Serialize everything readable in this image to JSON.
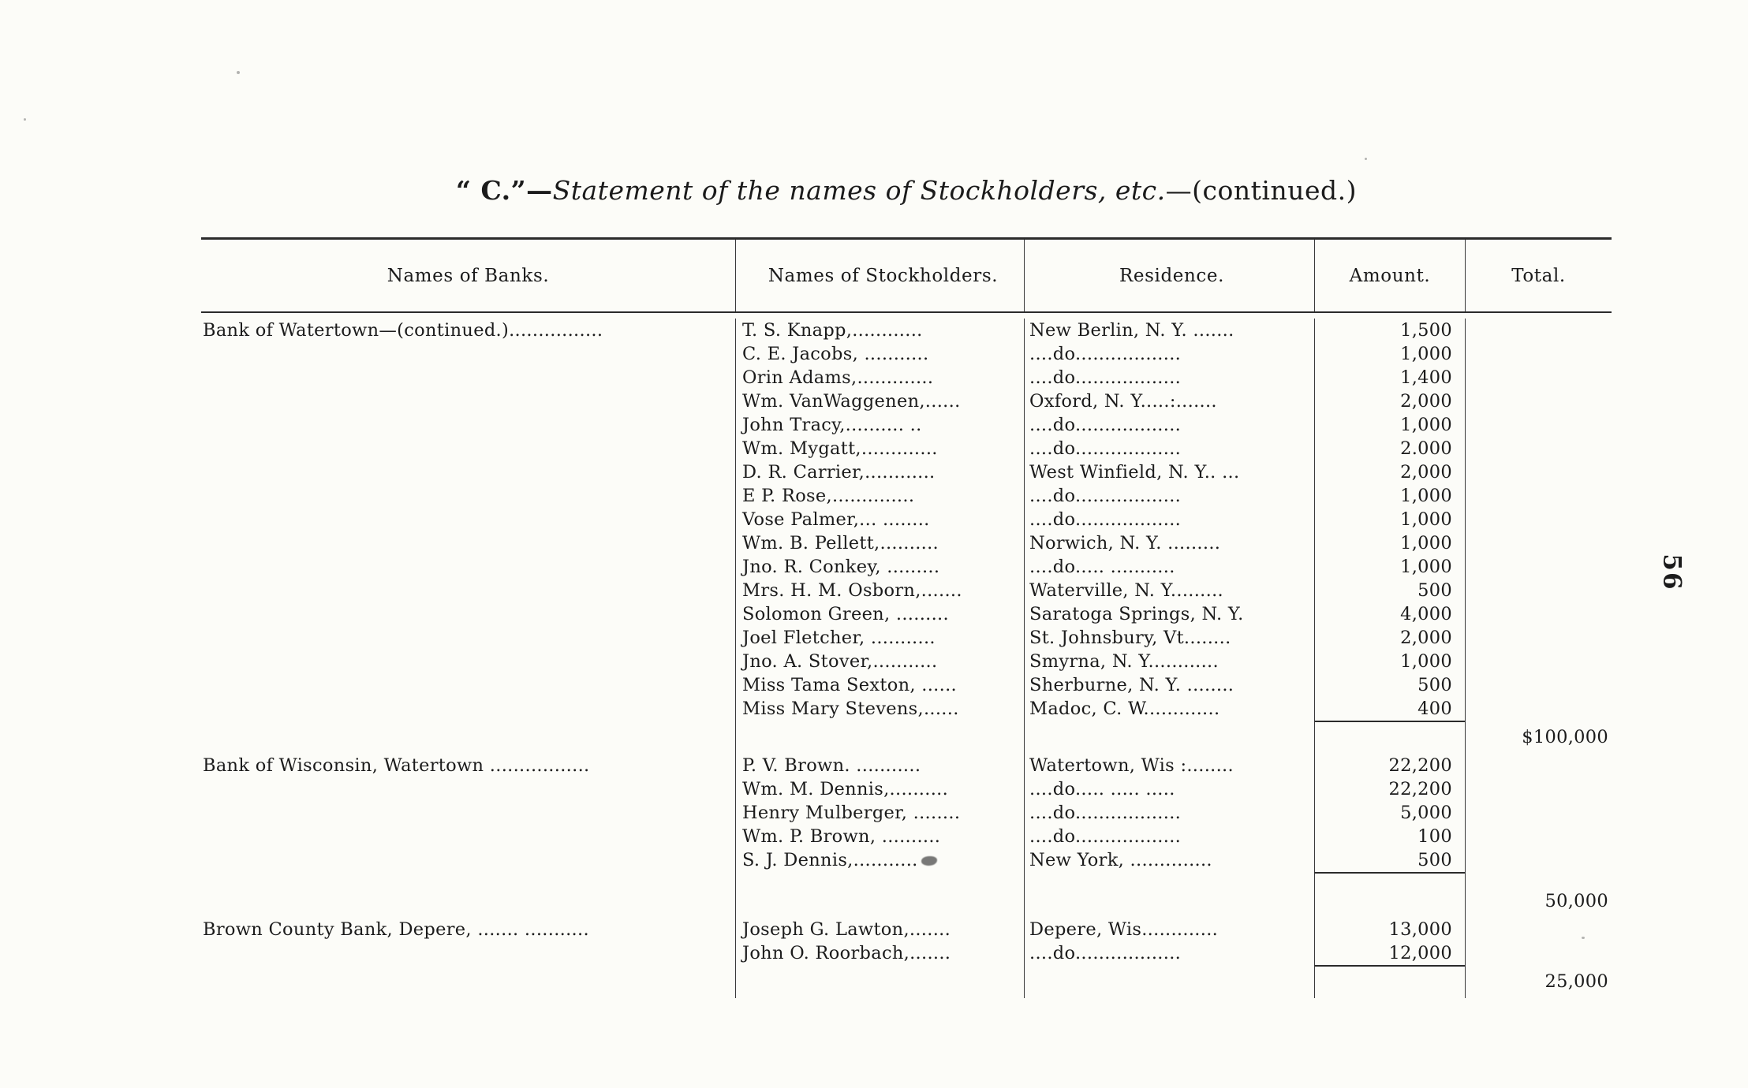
{
  "page": {
    "number": "56"
  },
  "title": {
    "prefix": "“ C.”—",
    "italic": "Statement of the names of Stockholders, etc.",
    "suffix": "—(continued.)"
  },
  "table": {
    "headers": [
      "Names of Banks.",
      "Names of  Stockholders.",
      "Residence.",
      "Amount.",
      "Total."
    ],
    "groups": [
      {
        "bank": "Bank of  Watertown—(continued.)................",
        "rows": [
          {
            "stockholder": "T. S. Knapp,............",
            "residence": "New Berlin, N. Y. .......",
            "amount": "1,500"
          },
          {
            "stockholder": "C. E.  Jacobs, ...........",
            "residence": "....do..................",
            "amount": "1,000"
          },
          {
            "stockholder": "Orin Adams,.............",
            "residence": "....do..................",
            "amount": "1,400"
          },
          {
            "stockholder": "Wm. VanWaggenen,......",
            "residence": "Oxford, N. Y.....:.......",
            "amount": "2,000"
          },
          {
            "stockholder": "John Tracy,.......... ..",
            "residence": "....do..................",
            "amount": "1,000"
          },
          {
            "stockholder": "Wm. Mygatt,.............",
            "residence": "....do..................",
            "amount": "2.000"
          },
          {
            "stockholder": "D. R. Carrier,............",
            "residence": "West Winfield, N. Y..  ...",
            "amount": "2,000"
          },
          {
            "stockholder": "E  P. Rose,..............",
            "residence": "....do..................",
            "amount": "1,000"
          },
          {
            "stockholder": "Vose Palmer,... ........",
            "residence": "....do..................",
            "amount": "1,000"
          },
          {
            "stockholder": "Wm. B. Pellett,..........",
            "residence": "Norwich, N. Y. .........",
            "amount": "1,000"
          },
          {
            "stockholder": "Jno. R. Conkey, .........",
            "residence": "....do..... ...........",
            "amount": "1,000"
          },
          {
            "stockholder": "Mrs. H. M. Osborn,.......",
            "residence": "Waterville, N. Y.........",
            "amount": "500"
          },
          {
            "stockholder": "Solomon Green, .........",
            "residence": "Saratoga Springs, N. Y.",
            "amount": "4,000"
          },
          {
            "stockholder": "Joel Fletcher, ...........",
            "residence": "St. Johnsbury, Vt........",
            "amount": "2,000"
          },
          {
            "stockholder": "Jno. A. Stover,...........",
            "residence": "Smyrna, N. Y............",
            "amount": "1,000"
          },
          {
            "stockholder": "Miss Tama Sexton, ......",
            "residence": "Sherburne, N. Y. ........",
            "amount": "500"
          },
          {
            "stockholder": "Miss Mary Stevens,......",
            "residence": "Madoc, C. W.............",
            "amount": "400"
          }
        ],
        "total": "$100,000"
      },
      {
        "bank": "Bank of Wisconsin, Watertown .................",
        "rows": [
          {
            "stockholder": "P. V. Brown. ...........",
            "residence": "Watertown, Wis :........",
            "amount": "22,200"
          },
          {
            "stockholder": "Wm. M. Dennis,..........",
            "residence": "....do.....  .....   .....",
            "amount": "22,200"
          },
          {
            "stockholder": "Henry Mulberger, ........",
            "residence": "....do..................",
            "amount": "5,000"
          },
          {
            "stockholder": "Wm. P. Brown, ..........",
            "residence": "....do..................",
            "amount": "100"
          },
          {
            "stockholder": "S. J. Dennis,...........",
            "residence": "New York, ..............",
            "amount": "500"
          }
        ],
        "total": "50,000"
      },
      {
        "bank": "Brown County Bank, Depere, ....... ...........",
        "rows": [
          {
            "stockholder": "Joseph G. Lawton,.......",
            "residence": "Depere, Wis.............",
            "amount": "13,000"
          },
          {
            "stockholder": "John O. Roorbach,.......",
            "residence": "....do..................",
            "amount": "12,000"
          }
        ],
        "total": "25,000"
      }
    ]
  }
}
